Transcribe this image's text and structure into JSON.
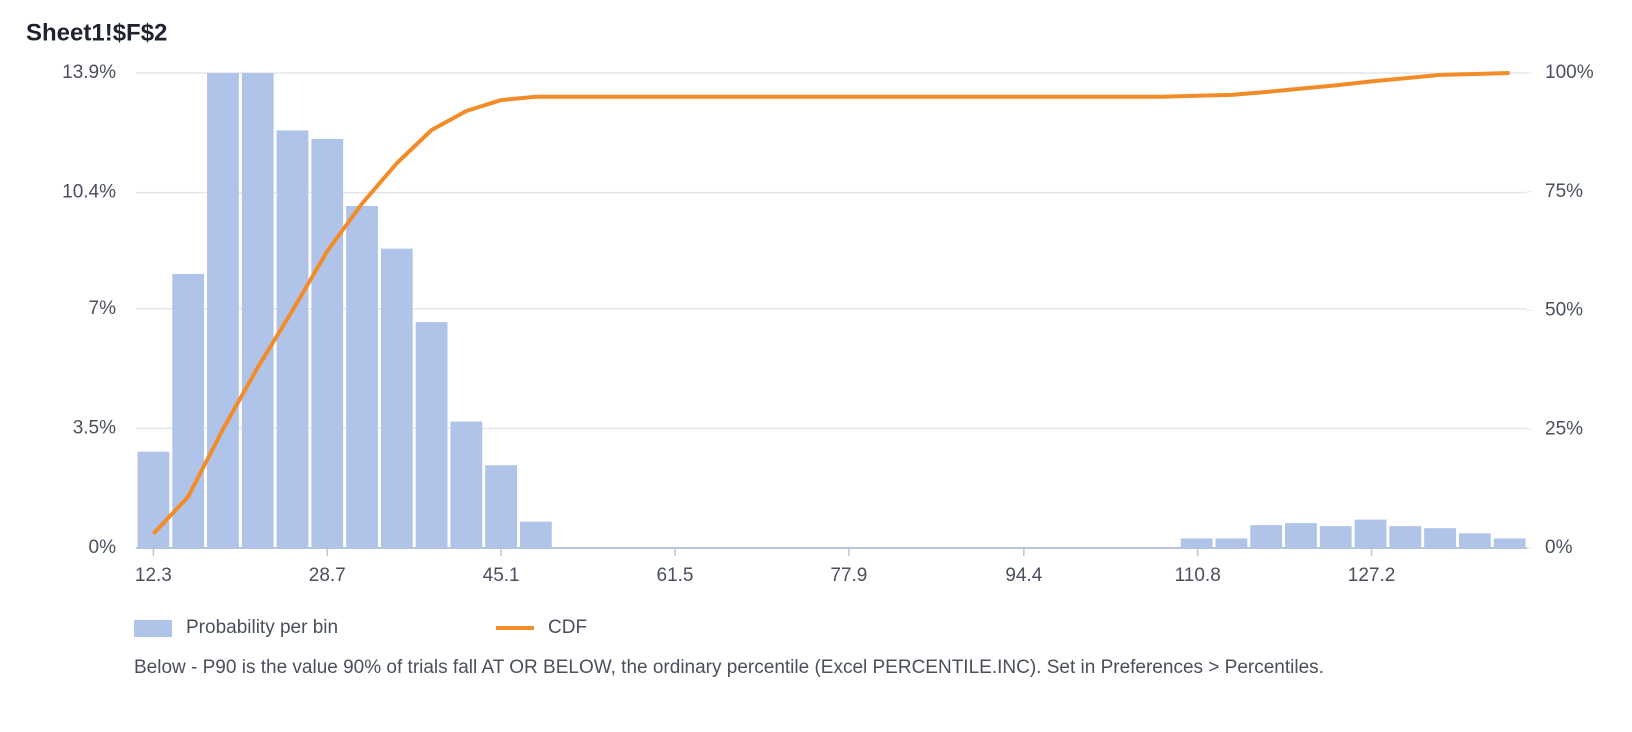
{
  "chart_data": {
    "type": "histogram",
    "title": "Sheet1!$F$2",
    "note": "Below - P90 is the value 90% of trials fall AT OR BELOW, the ordinary percentile (Excel PERCENTILE.INC). Set in Preferences > Percentiles.",
    "bins": [
      10.66,
      13.94,
      17.22,
      20.5,
      23.78,
      27.06,
      30.34,
      33.62,
      36.9,
      40.18,
      43.46,
      46.74,
      50.02,
      53.3,
      56.58,
      59.86,
      63.14,
      66.42,
      69.7,
      72.98,
      76.26,
      79.54,
      82.82,
      86.1,
      89.38,
      92.66,
      95.94,
      99.22,
      102.5,
      105.78,
      109.06,
      112.34,
      115.62,
      118.9,
      122.18,
      125.46,
      128.74,
      132.02,
      135.3,
      138.58,
      141.86
    ],
    "series": [
      {
        "name": "Probability per bin",
        "color": "#b0c3e8",
        "values": [
          2.82,
          8.02,
          13.9,
          13.9,
          12.22,
          11.97,
          10.01,
          8.76,
          6.61,
          3.7,
          2.42,
          0.77,
          0,
          0,
          0,
          0,
          0,
          0,
          0,
          0,
          0,
          0,
          0,
          0,
          0,
          0,
          0,
          0,
          0,
          0,
          0.28,
          0.28,
          0.67,
          0.73,
          0.64,
          0.83,
          0.64,
          0.58,
          0.43,
          0.28
        ]
      },
      {
        "name": "CDF",
        "color": "#f28c28",
        "axis": "y2",
        "x": [
          12.3,
          15.58,
          18.86,
          22.14,
          25.42,
          28.7,
          31.98,
          35.26,
          38.54,
          41.82,
          45.1,
          48.38,
          51.66,
          54.94,
          58.22,
          61.5,
          64.78,
          68.06,
          71.34,
          74.62,
          77.9,
          81.18,
          84.46,
          87.74,
          91.02,
          94.3,
          97.58,
          100.86,
          104.14,
          107.42,
          110.7,
          113.98,
          117.26,
          120.54,
          123.82,
          127.1,
          130.38,
          133.66,
          136.94,
          140.22
        ],
        "values": [
          3,
          10.8,
          25,
          38,
          50,
          62.5,
          72.5,
          81,
          88,
          92,
          94.3,
          95,
          95,
          95,
          95,
          95,
          95,
          95,
          95,
          95,
          95,
          95,
          95,
          95,
          95,
          95,
          95,
          95,
          95,
          95,
          95.2,
          95.4,
          96,
          96.7,
          97.4,
          98.2,
          98.9,
          99.6,
          99.8,
          100
        ]
      }
    ],
    "xlim": [
      10.66,
      141.86
    ],
    "xticks": [
      12.3,
      28.7,
      45.1,
      61.5,
      77.9,
      94.4,
      110.8,
      127.2
    ],
    "ylim": [
      0,
      13.9
    ],
    "yticks": [
      {
        "value": 0,
        "label": "0%"
      },
      {
        "value": 3.5,
        "label": "3.5%"
      },
      {
        "value": 7,
        "label": "7%"
      },
      {
        "value": 10.4,
        "label": "10.4%"
      },
      {
        "value": 13.9,
        "label": "13.9%"
      }
    ],
    "y2lim": [
      0,
      100
    ],
    "y2ticks": [
      {
        "value": 0,
        "label": "0%"
      },
      {
        "value": 25,
        "label": "25%"
      },
      {
        "value": 50,
        "label": "50%"
      },
      {
        "value": 75,
        "label": "75%"
      },
      {
        "value": 100,
        "label": "100%"
      }
    ],
    "grid": true
  }
}
